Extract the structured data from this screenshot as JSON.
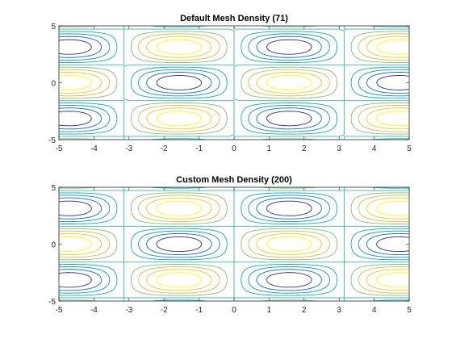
{
  "chart_data": [
    {
      "type": "contour",
      "title": "Default Mesh Density (71)",
      "function": "z = sin(x) * cos(y)",
      "mesh_points": 71,
      "xlim": [
        -5,
        5
      ],
      "ylim": [
        -5,
        5
      ],
      "xticks": [
        "-5",
        "-4",
        "-3",
        "-2",
        "-1",
        "0",
        "1",
        "2",
        "3",
        "4",
        "5"
      ],
      "yticks": [
        "-5",
        "0",
        "5"
      ],
      "levels": [
        -0.8,
        -0.6,
        -0.4,
        -0.2,
        0,
        0.2,
        0.4,
        0.6,
        0.8
      ],
      "colormap": "parula",
      "grid": false
    },
    {
      "type": "contour",
      "title": "Custom Mesh Density (200)",
      "function": "z = sin(x) * cos(y)",
      "mesh_points": 200,
      "xlim": [
        -5,
        5
      ],
      "ylim": [
        -5,
        5
      ],
      "xticks": [
        "-5",
        "-4",
        "-3",
        "-2",
        "-1",
        "0",
        "1",
        "2",
        "3",
        "4",
        "5"
      ],
      "yticks": [
        "-5",
        "0",
        "5"
      ],
      "levels": [
        -0.8,
        -0.6,
        -0.4,
        -0.2,
        0,
        0.2,
        0.4,
        0.6,
        0.8
      ],
      "colormap": "parula",
      "grid": false
    }
  ]
}
